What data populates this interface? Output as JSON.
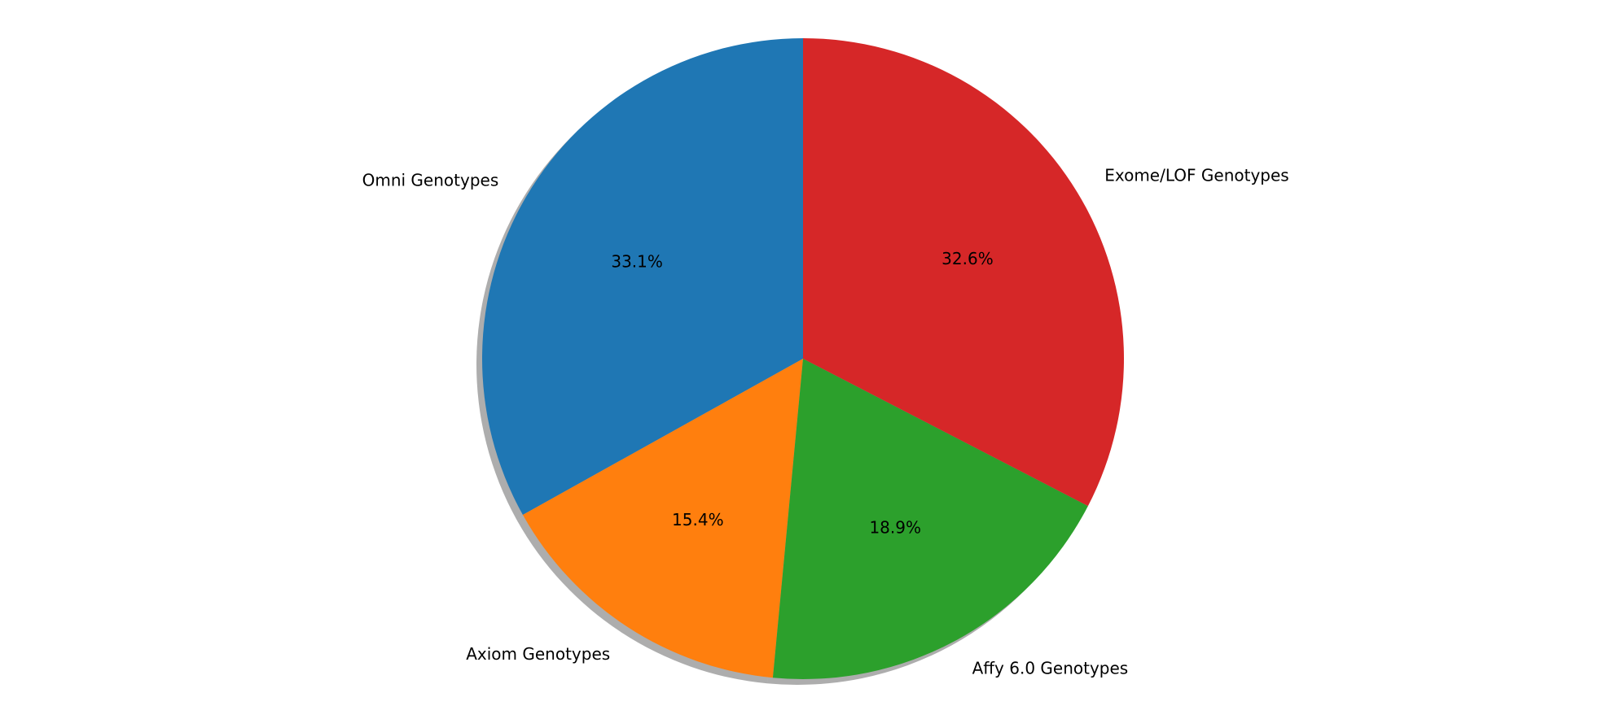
{
  "chart_data": {
    "type": "pie",
    "start_angle_deg": 90,
    "direction": "counterclockwise",
    "shadow": true,
    "slices": [
      {
        "label": "Omni Genotypes",
        "value": 33.1,
        "pct_label": "33.1%",
        "color": "#1f77b4"
      },
      {
        "label": "Axiom Genotypes",
        "value": 15.4,
        "pct_label": "15.4%",
        "color": "#ff7f0e"
      },
      {
        "label": "Affy 6.0 Genotypes",
        "value": 18.9,
        "pct_label": "18.9%",
        "color": "#2ca02c"
      },
      {
        "label": "Exome/LOF Genotypes",
        "value": 32.6,
        "pct_label": "32.6%",
        "color": "#d62728"
      }
    ]
  }
}
